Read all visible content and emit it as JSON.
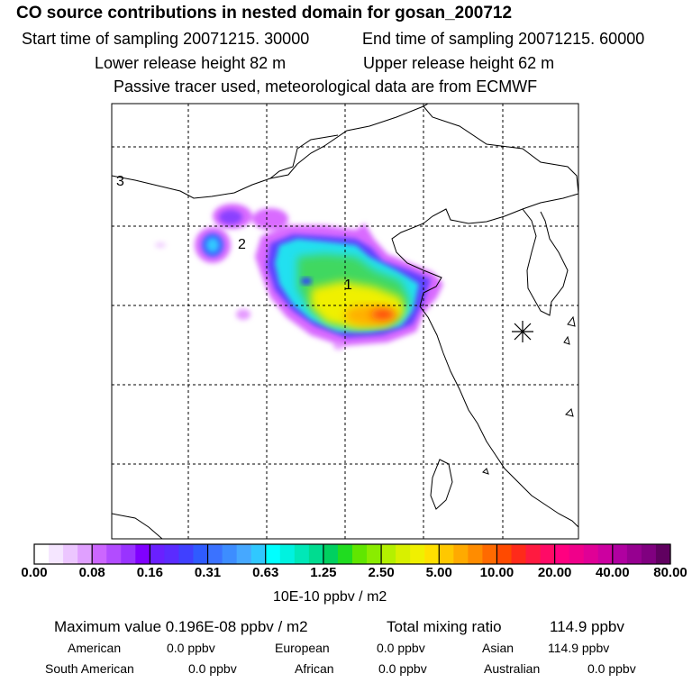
{
  "title": "CO  source contributions in nested domain for gosan_200712",
  "sampling": {
    "start": "Start time of sampling 20071215. 30000",
    "end": "End time of sampling 20071215. 60000"
  },
  "release": {
    "lower": "Lower release height   82 m",
    "upper": "Upper release height   62 m"
  },
  "note": "Passive tracer used, meteorological data are from ECMWF",
  "map_labels": {
    "l1": "1",
    "l2": "2",
    "l3": "3"
  },
  "colorbar": {
    "ticks": [
      "0.00",
      "0.08",
      "0.16",
      "0.31",
      "0.63",
      "1.25",
      "2.50",
      "5.00",
      "10.00",
      "20.00",
      "40.00",
      "80.00"
    ],
    "units": "10E-10 ppbv / m2",
    "colors": [
      "#ffffff",
      "#f5e6ff",
      "#ecc6ff",
      "#e0a0ff",
      "#cc66ff",
      "#b24cff",
      "#9933ff",
      "#8000ff",
      "#6a20ff",
      "#5b2bff",
      "#4040ff",
      "#2f5bff",
      "#3b72ff",
      "#3d8dff",
      "#46a8ff",
      "#30c8ff",
      "#00ffff",
      "#00f2e0",
      "#00e8b8",
      "#00dc90",
      "#00d060",
      "#20dc20",
      "#60e600",
      "#8aec00",
      "#b4f000",
      "#d8f000",
      "#f0f000",
      "#ffe000",
      "#ffc800",
      "#ffaa00",
      "#ff8c00",
      "#ff6a00",
      "#ff4a00",
      "#ff2a1a",
      "#ff1a40",
      "#ff0a66",
      "#ff0080",
      "#f0008a",
      "#e00096",
      "#cc00a0",
      "#b000a0",
      "#960090",
      "#800080",
      "#600060"
    ]
  },
  "stats": {
    "max_label": "Maximum value  0.196E-08 ppbv / m2",
    "total_label": "Total mixing ratio",
    "total_value": "114.9 ppbv",
    "american_label": "American",
    "american_value": "0.0 ppbv",
    "european_label": "European",
    "european_value": "0.0 ppbv",
    "asian_label": "Asian",
    "asian_value": "114.9 ppbv",
    "south_american_label": "South American",
    "south_american_value": "0.0 ppbv",
    "african_label": "African",
    "african_value": "0.0 ppbv",
    "australian_label": "Australian",
    "australian_value": "0.0 ppbv"
  }
}
